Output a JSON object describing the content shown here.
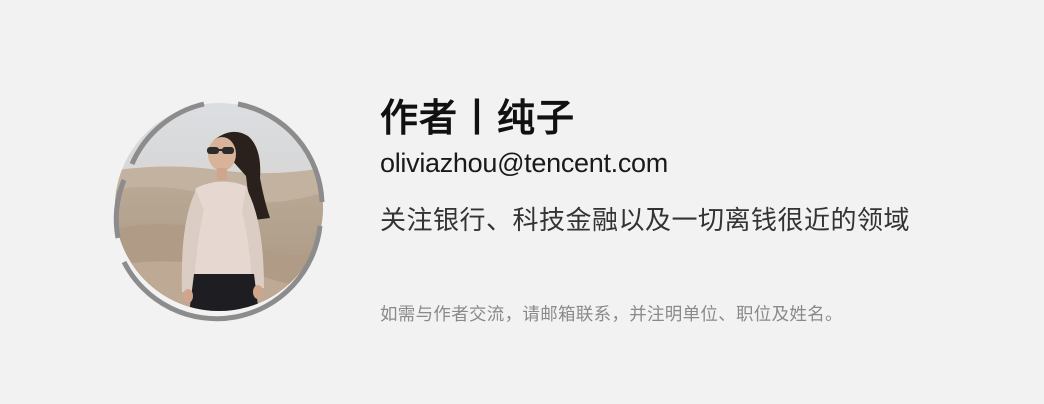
{
  "author": {
    "title": "作者丨纯子",
    "email": "oliviazhou@tencent.com",
    "focus": "关注银行、科技金融以及一切离钱很近的领域",
    "contact_note": "如需与作者交流，请邮箱联系，并注明单位、职位及姓名。"
  },
  "colors": {
    "background": "#f2f2f2",
    "ring": "#8c8c8c",
    "title": "#111111",
    "note": "#8a8a8a"
  }
}
